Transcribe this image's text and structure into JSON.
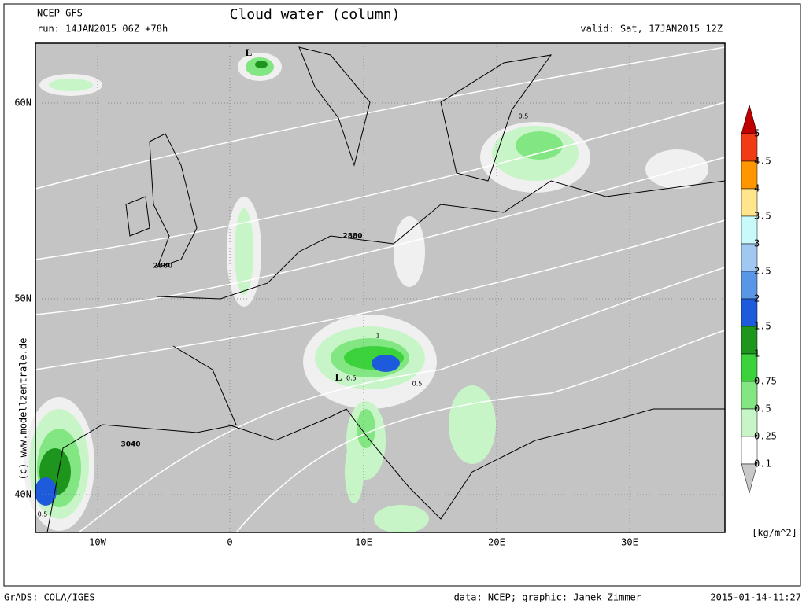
{
  "header": {
    "model": "NCEP GFS",
    "run": "run: 14JAN2015 06Z +78h",
    "title": "Cloud water (column)",
    "valid": "valid: Sat, 17JAN2015 12Z"
  },
  "map": {
    "lat_labels": [
      "60N",
      "50N",
      "40N"
    ],
    "lon_labels": [
      "10W",
      "0",
      "10E",
      "20E",
      "30E"
    ],
    "contour_labels": [
      "2880",
      "2880",
      "3040",
      "L",
      "L",
      "1",
      "0.5",
      "0.5",
      "0.5",
      "0.5"
    ]
  },
  "colorbar": {
    "labels": [
      "5",
      "4.5",
      "4",
      "3.5",
      "3",
      "2.5",
      "2",
      "1.5",
      "1",
      "0.75",
      "0.5",
      "0.25",
      "0.1"
    ],
    "colors": [
      "#f03c14",
      "#ff9600",
      "#ffe68c",
      "#c8fafa",
      "#a0c8f0",
      "#5a96e6",
      "#1e5adc",
      "#1e961e",
      "#3cd23c",
      "#82e682",
      "#c8f5c8",
      "#ffffff"
    ],
    "over_color": "#c00000",
    "under_color": "#c8c8c8",
    "unit": "[kg/m^2]"
  },
  "side_credit": "(c) www.modellzentrale.de",
  "footer": {
    "software": "GrADS: COLA/IGES",
    "credit": "data: NCEP; graphic: Janek Zimmer",
    "timestamp": "2015-01-14-11:27"
  }
}
